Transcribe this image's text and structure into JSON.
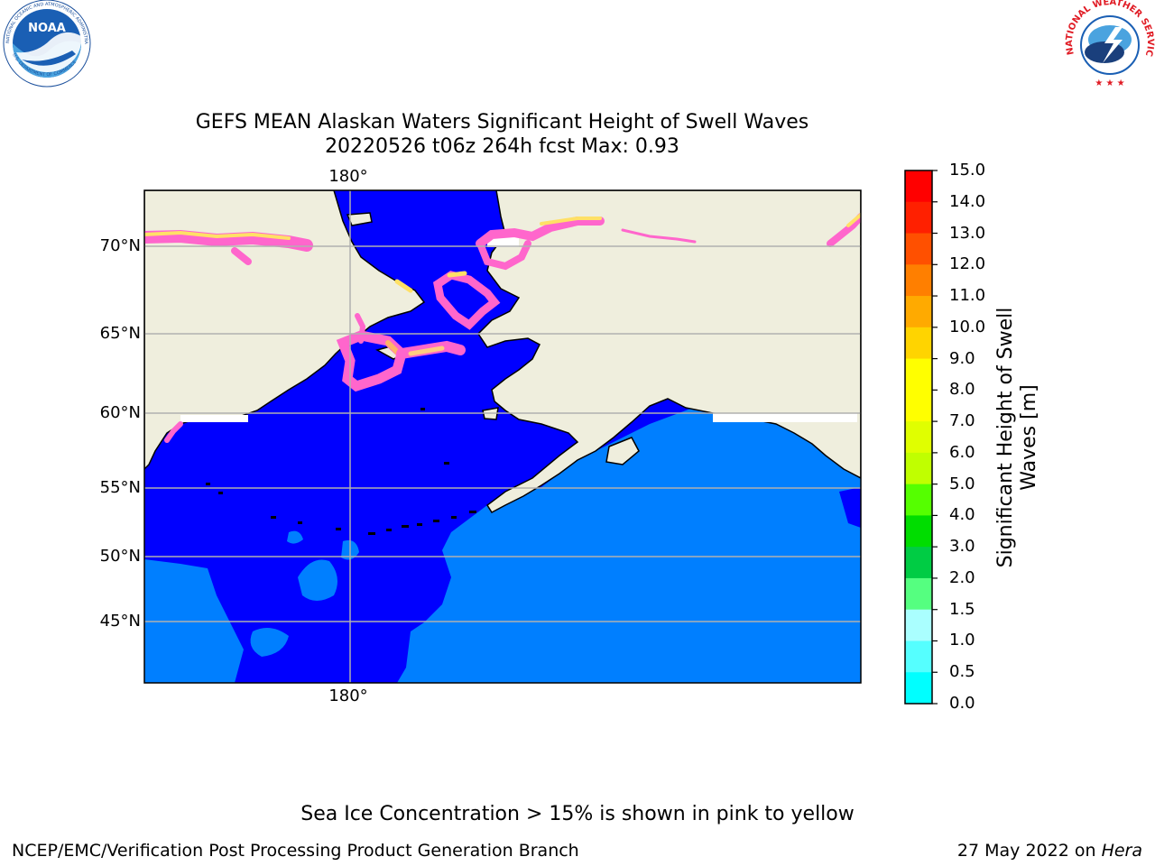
{
  "header": {
    "title_line1": "GEFS MEAN Alaskan Waters Significant Height of Swell Waves",
    "title_line2": "20220526 t06z 264h fcst   Max: 0.93"
  },
  "logos": {
    "noaa": "NOAA",
    "noaa_ring": "NATIONAL OCEANIC AND ATMOSPHERIC ADMINISTRATION",
    "noaa_ring_bottom": "U.S. DEPARTMENT OF COMMERCE",
    "nws_ring": "NATIONAL WEATHER SERVICE"
  },
  "map": {
    "lat_labels": [
      "70°N",
      "65°N",
      "60°N",
      "55°N",
      "50°N",
      "45°N"
    ],
    "lon_top": "180°",
    "lon_bottom": "180°",
    "colors": {
      "land": "#efeedd",
      "ocean_low": "#0000ff",
      "ocean_mid": "#007fff",
      "ice_pink": "#ff66cc",
      "ice_yellow": "#ffe066",
      "grid": "#b0b0b0"
    }
  },
  "colorbar": {
    "label": "Significant Height of Swell Waves [m]",
    "label_line1": "Significant Height of Swell",
    "label_line2": "Waves [m]",
    "ticks": [
      "15.0",
      "14.0",
      "13.0",
      "12.0",
      "11.0",
      "10.0",
      "9.0",
      "8.0",
      "7.0",
      "6.0",
      "5.0",
      "4.0",
      "3.0",
      "2.0",
      "1.5",
      "1.0",
      "0.5",
      "0.0"
    ],
    "colors_top_to_bottom": [
      "#ff0000",
      "#ff2000",
      "#ff5000",
      "#ff7f00",
      "#ffaa00",
      "#ffd400",
      "#ffff00",
      "#ffff00",
      "#e0ff00",
      "#c0ff00",
      "#55ff00",
      "#00dd00",
      "#00cc44",
      "#55ff80",
      "#aaffff",
      "#55ffff",
      "#00ffff",
      "#007fff",
      "#0000ff"
    ]
  },
  "notes": {
    "sea_ice": "Sea Ice Concentration > 15% is shown in pink to yellow"
  },
  "footer": {
    "left": "NCEP/EMC/Verification Post Processing Product Generation Branch",
    "right_prefix": "27 May 2022 on ",
    "right_host": "Hera"
  }
}
